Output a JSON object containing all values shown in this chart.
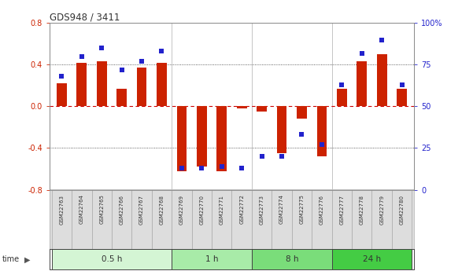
{
  "title": "GDS948 / 3411",
  "samples": [
    "GSM22763",
    "GSM22764",
    "GSM22765",
    "GSM22766",
    "GSM22767",
    "GSM22768",
    "GSM22769",
    "GSM22770",
    "GSM22771",
    "GSM22772",
    "GSM22773",
    "GSM22774",
    "GSM22775",
    "GSM22776",
    "GSM22777",
    "GSM22778",
    "GSM22779",
    "GSM22780"
  ],
  "log_ratio": [
    0.22,
    0.42,
    0.43,
    0.17,
    0.37,
    0.42,
    -0.62,
    -0.58,
    -0.62,
    -0.02,
    -0.05,
    -0.45,
    -0.12,
    -0.48,
    0.17,
    0.43,
    0.5,
    0.17
  ],
  "percentile": [
    68,
    80,
    85,
    72,
    77,
    83,
    13,
    13,
    14,
    13,
    20,
    20,
    33,
    27,
    63,
    82,
    90,
    63
  ],
  "groups": [
    {
      "label": "0.5 h",
      "start": 0,
      "end": 6,
      "color": "#d4f5d4"
    },
    {
      "label": "1 h",
      "start": 6,
      "end": 10,
      "color": "#a8eba8"
    },
    {
      "label": "8 h",
      "start": 10,
      "end": 14,
      "color": "#7add7a"
    },
    {
      "label": "24 h",
      "start": 14,
      "end": 18,
      "color": "#44cc44"
    }
  ],
  "group_boundaries": [
    6,
    10,
    14
  ],
  "ylim": [
    -0.8,
    0.8
  ],
  "yticks_left": [
    -0.8,
    -0.4,
    0.0,
    0.4,
    0.8
  ],
  "yticks_right": [
    0,
    25,
    50,
    75,
    100
  ],
  "bar_color": "#cc2200",
  "dot_color": "#2222cc",
  "hline_color": "#cc0000",
  "dot_size": 18,
  "bar_width": 0.5,
  "bg_color": "#ffffff",
  "label_color_left": "#cc2200",
  "label_color_right": "#2222cc",
  "cell_bg": "#dddddd",
  "cell_border": "#aaaaaa"
}
